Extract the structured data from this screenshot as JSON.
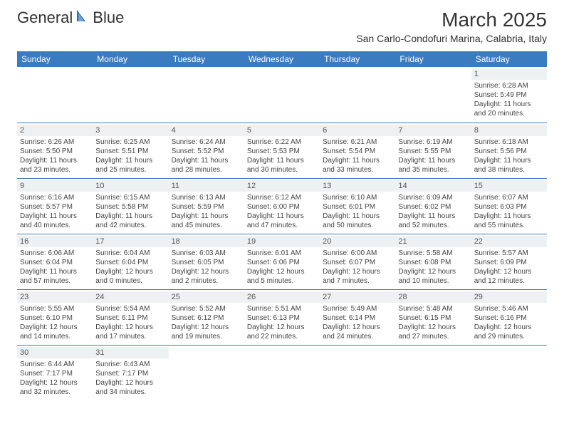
{
  "header": {
    "logo_general": "General",
    "logo_blue": "Blue",
    "title": "March 2025",
    "subtitle": "San Carlo-Condofuri Marina, Calabria, Italy"
  },
  "colors": {
    "header_bg": "#3b7bbf",
    "header_text": "#ffffff",
    "daynum_bg": "#eef1f3",
    "border": "#3b7bbf",
    "logo_sail": "#2f6aad"
  },
  "day_headers": [
    "Sunday",
    "Monday",
    "Tuesday",
    "Wednesday",
    "Thursday",
    "Friday",
    "Saturday"
  ],
  "weeks": [
    [
      {
        "n": "",
        "sr": "",
        "ss": "",
        "dl1": "",
        "dl2": ""
      },
      {
        "n": "",
        "sr": "",
        "ss": "",
        "dl1": "",
        "dl2": ""
      },
      {
        "n": "",
        "sr": "",
        "ss": "",
        "dl1": "",
        "dl2": ""
      },
      {
        "n": "",
        "sr": "",
        "ss": "",
        "dl1": "",
        "dl2": ""
      },
      {
        "n": "",
        "sr": "",
        "ss": "",
        "dl1": "",
        "dl2": ""
      },
      {
        "n": "",
        "sr": "",
        "ss": "",
        "dl1": "",
        "dl2": ""
      },
      {
        "n": "1",
        "sr": "Sunrise: 6:28 AM",
        "ss": "Sunset: 5:49 PM",
        "dl1": "Daylight: 11 hours",
        "dl2": "and 20 minutes."
      }
    ],
    [
      {
        "n": "2",
        "sr": "Sunrise: 6:26 AM",
        "ss": "Sunset: 5:50 PM",
        "dl1": "Daylight: 11 hours",
        "dl2": "and 23 minutes."
      },
      {
        "n": "3",
        "sr": "Sunrise: 6:25 AM",
        "ss": "Sunset: 5:51 PM",
        "dl1": "Daylight: 11 hours",
        "dl2": "and 25 minutes."
      },
      {
        "n": "4",
        "sr": "Sunrise: 6:24 AM",
        "ss": "Sunset: 5:52 PM",
        "dl1": "Daylight: 11 hours",
        "dl2": "and 28 minutes."
      },
      {
        "n": "5",
        "sr": "Sunrise: 6:22 AM",
        "ss": "Sunset: 5:53 PM",
        "dl1": "Daylight: 11 hours",
        "dl2": "and 30 minutes."
      },
      {
        "n": "6",
        "sr": "Sunrise: 6:21 AM",
        "ss": "Sunset: 5:54 PM",
        "dl1": "Daylight: 11 hours",
        "dl2": "and 33 minutes."
      },
      {
        "n": "7",
        "sr": "Sunrise: 6:19 AM",
        "ss": "Sunset: 5:55 PM",
        "dl1": "Daylight: 11 hours",
        "dl2": "and 35 minutes."
      },
      {
        "n": "8",
        "sr": "Sunrise: 6:18 AM",
        "ss": "Sunset: 5:56 PM",
        "dl1": "Daylight: 11 hours",
        "dl2": "and 38 minutes."
      }
    ],
    [
      {
        "n": "9",
        "sr": "Sunrise: 6:16 AM",
        "ss": "Sunset: 5:57 PM",
        "dl1": "Daylight: 11 hours",
        "dl2": "and 40 minutes."
      },
      {
        "n": "10",
        "sr": "Sunrise: 6:15 AM",
        "ss": "Sunset: 5:58 PM",
        "dl1": "Daylight: 11 hours",
        "dl2": "and 42 minutes."
      },
      {
        "n": "11",
        "sr": "Sunrise: 6:13 AM",
        "ss": "Sunset: 5:59 PM",
        "dl1": "Daylight: 11 hours",
        "dl2": "and 45 minutes."
      },
      {
        "n": "12",
        "sr": "Sunrise: 6:12 AM",
        "ss": "Sunset: 6:00 PM",
        "dl1": "Daylight: 11 hours",
        "dl2": "and 47 minutes."
      },
      {
        "n": "13",
        "sr": "Sunrise: 6:10 AM",
        "ss": "Sunset: 6:01 PM",
        "dl1": "Daylight: 11 hours",
        "dl2": "and 50 minutes."
      },
      {
        "n": "14",
        "sr": "Sunrise: 6:09 AM",
        "ss": "Sunset: 6:02 PM",
        "dl1": "Daylight: 11 hours",
        "dl2": "and 52 minutes."
      },
      {
        "n": "15",
        "sr": "Sunrise: 6:07 AM",
        "ss": "Sunset: 6:03 PM",
        "dl1": "Daylight: 11 hours",
        "dl2": "and 55 minutes."
      }
    ],
    [
      {
        "n": "16",
        "sr": "Sunrise: 6:06 AM",
        "ss": "Sunset: 6:04 PM",
        "dl1": "Daylight: 11 hours",
        "dl2": "and 57 minutes."
      },
      {
        "n": "17",
        "sr": "Sunrise: 6:04 AM",
        "ss": "Sunset: 6:04 PM",
        "dl1": "Daylight: 12 hours",
        "dl2": "and 0 minutes."
      },
      {
        "n": "18",
        "sr": "Sunrise: 6:03 AM",
        "ss": "Sunset: 6:05 PM",
        "dl1": "Daylight: 12 hours",
        "dl2": "and 2 minutes."
      },
      {
        "n": "19",
        "sr": "Sunrise: 6:01 AM",
        "ss": "Sunset: 6:06 PM",
        "dl1": "Daylight: 12 hours",
        "dl2": "and 5 minutes."
      },
      {
        "n": "20",
        "sr": "Sunrise: 6:00 AM",
        "ss": "Sunset: 6:07 PM",
        "dl1": "Daylight: 12 hours",
        "dl2": "and 7 minutes."
      },
      {
        "n": "21",
        "sr": "Sunrise: 5:58 AM",
        "ss": "Sunset: 6:08 PM",
        "dl1": "Daylight: 12 hours",
        "dl2": "and 10 minutes."
      },
      {
        "n": "22",
        "sr": "Sunrise: 5:57 AM",
        "ss": "Sunset: 6:09 PM",
        "dl1": "Daylight: 12 hours",
        "dl2": "and 12 minutes."
      }
    ],
    [
      {
        "n": "23",
        "sr": "Sunrise: 5:55 AM",
        "ss": "Sunset: 6:10 PM",
        "dl1": "Daylight: 12 hours",
        "dl2": "and 14 minutes."
      },
      {
        "n": "24",
        "sr": "Sunrise: 5:54 AM",
        "ss": "Sunset: 6:11 PM",
        "dl1": "Daylight: 12 hours",
        "dl2": "and 17 minutes."
      },
      {
        "n": "25",
        "sr": "Sunrise: 5:52 AM",
        "ss": "Sunset: 6:12 PM",
        "dl1": "Daylight: 12 hours",
        "dl2": "and 19 minutes."
      },
      {
        "n": "26",
        "sr": "Sunrise: 5:51 AM",
        "ss": "Sunset: 6:13 PM",
        "dl1": "Daylight: 12 hours",
        "dl2": "and 22 minutes."
      },
      {
        "n": "27",
        "sr": "Sunrise: 5:49 AM",
        "ss": "Sunset: 6:14 PM",
        "dl1": "Daylight: 12 hours",
        "dl2": "and 24 minutes."
      },
      {
        "n": "28",
        "sr": "Sunrise: 5:48 AM",
        "ss": "Sunset: 6:15 PM",
        "dl1": "Daylight: 12 hours",
        "dl2": "and 27 minutes."
      },
      {
        "n": "29",
        "sr": "Sunrise: 5:46 AM",
        "ss": "Sunset: 6:16 PM",
        "dl1": "Daylight: 12 hours",
        "dl2": "and 29 minutes."
      }
    ],
    [
      {
        "n": "30",
        "sr": "Sunrise: 6:44 AM",
        "ss": "Sunset: 7:17 PM",
        "dl1": "Daylight: 12 hours",
        "dl2": "and 32 minutes."
      },
      {
        "n": "31",
        "sr": "Sunrise: 6:43 AM",
        "ss": "Sunset: 7:17 PM",
        "dl1": "Daylight: 12 hours",
        "dl2": "and 34 minutes."
      },
      {
        "n": "",
        "sr": "",
        "ss": "",
        "dl1": "",
        "dl2": ""
      },
      {
        "n": "",
        "sr": "",
        "ss": "",
        "dl1": "",
        "dl2": ""
      },
      {
        "n": "",
        "sr": "",
        "ss": "",
        "dl1": "",
        "dl2": ""
      },
      {
        "n": "",
        "sr": "",
        "ss": "",
        "dl1": "",
        "dl2": ""
      },
      {
        "n": "",
        "sr": "",
        "ss": "",
        "dl1": "",
        "dl2": ""
      }
    ]
  ]
}
